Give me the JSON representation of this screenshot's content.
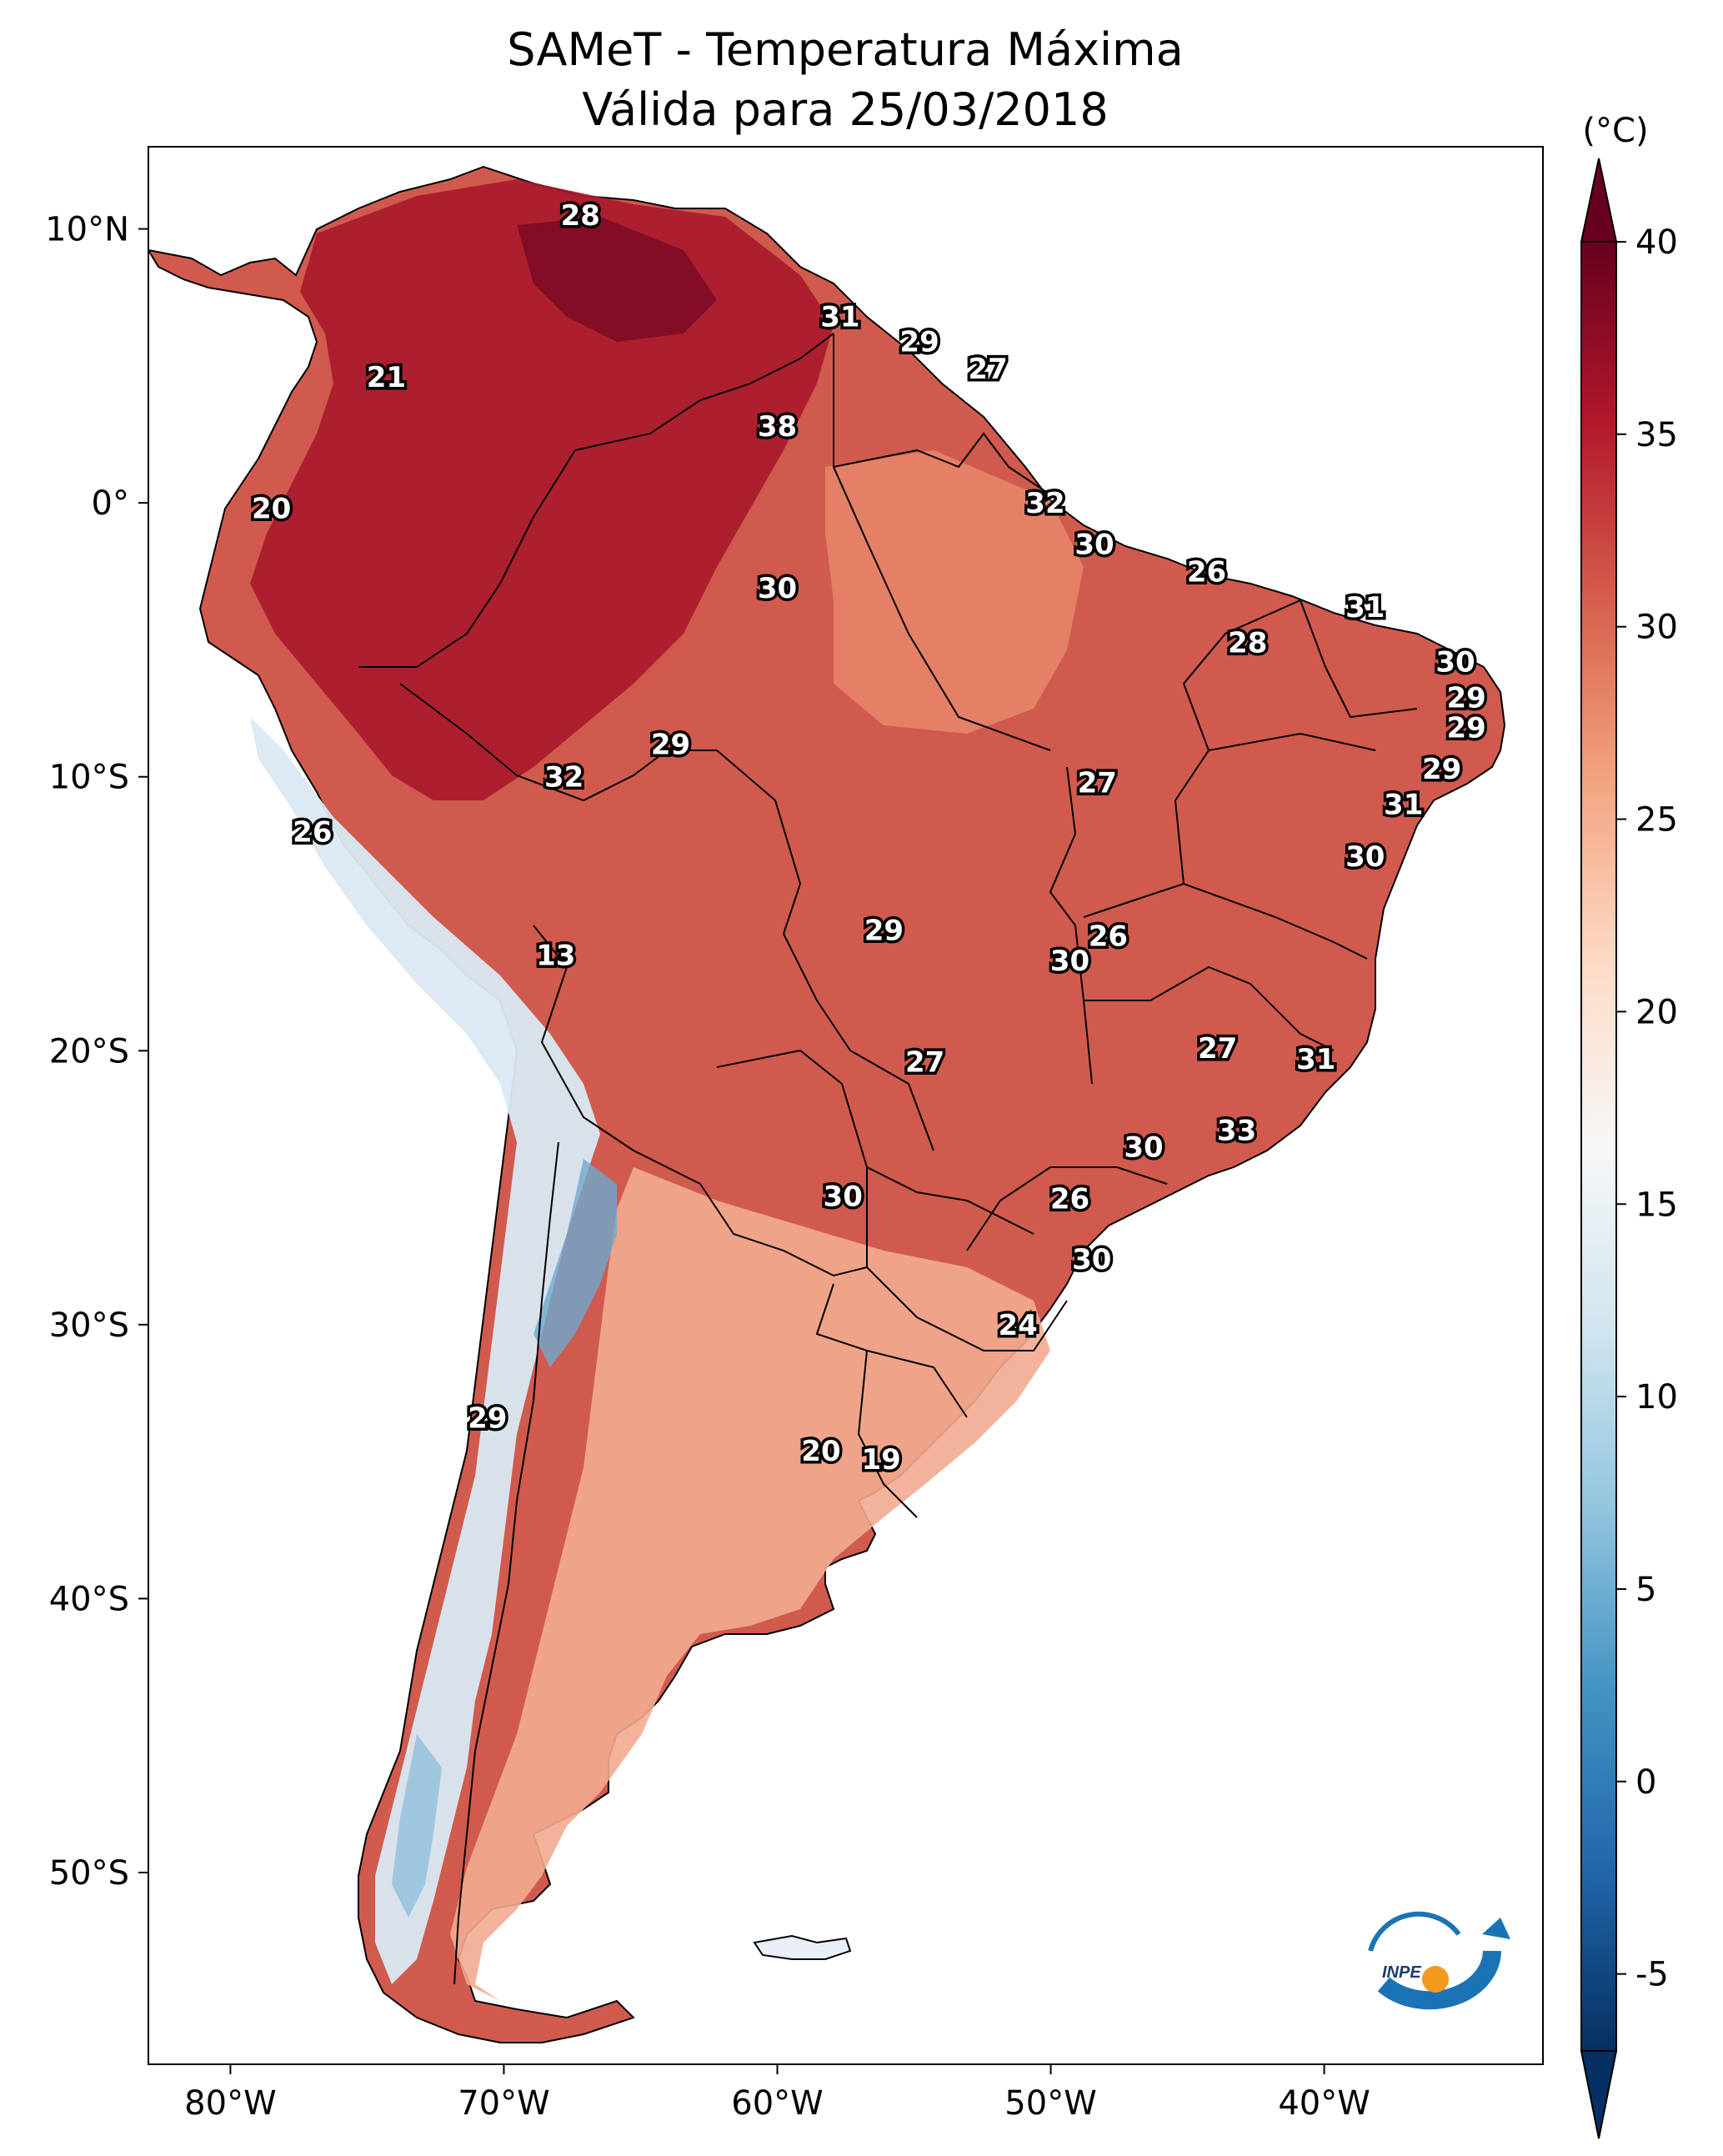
{
  "title": "SAMeT - Temperatura Máxima",
  "subtitle": "Válida para 25/03/2018",
  "colorbar": {
    "unit": "(°C)",
    "ticks": [
      {
        "label": "40",
        "value": 40
      },
      {
        "label": "35",
        "value": 35
      },
      {
        "label": "30",
        "value": 30
      },
      {
        "label": "25",
        "value": 25
      },
      {
        "label": "20",
        "value": 20
      },
      {
        "label": "15",
        "value": 15
      },
      {
        "label": "10",
        "value": 10
      },
      {
        "label": "5",
        "value": 5
      },
      {
        "label": "0",
        "value": 0
      },
      {
        "label": "-5",
        "value": -5
      }
    ],
    "colors": [
      "#67001f",
      "#b2182b",
      "#d6604d",
      "#f4a582",
      "#fddbc7",
      "#f7f7f7",
      "#d1e5f0",
      "#92c5de",
      "#4393c3",
      "#2166ac",
      "#053061"
    ]
  },
  "axes": {
    "lat_ticks": [
      {
        "label": "10°N",
        "value": 10
      },
      {
        "label": "0°",
        "value": 0
      },
      {
        "label": "10°S",
        "value": -10
      },
      {
        "label": "20°S",
        "value": -20
      },
      {
        "label": "30°S",
        "value": -30
      },
      {
        "label": "40°S",
        "value": -40
      },
      {
        "label": "50°S",
        "value": -50
      }
    ],
    "lon_ticks": [
      {
        "label": "80°W",
        "value": -80
      },
      {
        "label": "70°W",
        "value": -70
      },
      {
        "label": "60°W",
        "value": -60
      },
      {
        "label": "50°W",
        "value": -50
      },
      {
        "label": "40°W",
        "value": -40
      }
    ]
  },
  "station_values": [
    {
      "label": "28",
      "lon": -67.2,
      "lat": 10.5
    },
    {
      "label": "31",
      "lon": -57.7,
      "lat": 6.8
    },
    {
      "label": "29",
      "lon": -54.8,
      "lat": 5.9
    },
    {
      "label": "27",
      "lon": -52.3,
      "lat": 4.9
    },
    {
      "label": "21",
      "lon": -74.3,
      "lat": 4.6
    },
    {
      "label": "38",
      "lon": -60.0,
      "lat": 2.8
    },
    {
      "label": "20",
      "lon": -78.5,
      "lat": -0.2
    },
    {
      "label": "32",
      "lon": -50.2,
      "lat": 0.0
    },
    {
      "label": "30",
      "lon": -48.4,
      "lat": -1.5
    },
    {
      "label": "30",
      "lon": -60.0,
      "lat": -3.1
    },
    {
      "label": "26",
      "lon": -44.3,
      "lat": -2.5
    },
    {
      "label": "31",
      "lon": -38.5,
      "lat": -3.8
    },
    {
      "label": "28",
      "lon": -42.8,
      "lat": -5.1
    },
    {
      "label": "30",
      "lon": -35.2,
      "lat": -5.8
    },
    {
      "label": "29",
      "lon": -34.8,
      "lat": -7.1
    },
    {
      "label": "29",
      "lon": -34.8,
      "lat": -8.2
    },
    {
      "label": "29",
      "lon": -35.7,
      "lat": -9.7
    },
    {
      "label": "31",
      "lon": -37.1,
      "lat": -11.0
    },
    {
      "label": "29",
      "lon": -63.9,
      "lat": -8.8
    },
    {
      "label": "32",
      "lon": -67.8,
      "lat": -10.0
    },
    {
      "label": "27",
      "lon": -48.3,
      "lat": -10.2
    },
    {
      "label": "26",
      "lon": -77.0,
      "lat": -12.0
    },
    {
      "label": "30",
      "lon": -38.5,
      "lat": -12.9
    },
    {
      "label": "29",
      "lon": -56.1,
      "lat": -15.6
    },
    {
      "label": "26",
      "lon": -47.9,
      "lat": -15.8
    },
    {
      "label": "30",
      "lon": -49.3,
      "lat": -16.7
    },
    {
      "label": "13",
      "lon": -68.1,
      "lat": -16.5
    },
    {
      "label": "27",
      "lon": -43.9,
      "lat": -19.9
    },
    {
      "label": "31",
      "lon": -40.3,
      "lat": -20.3
    },
    {
      "label": "27",
      "lon": -54.6,
      "lat": -20.4
    },
    {
      "label": "33",
      "lon": -43.2,
      "lat": -22.9
    },
    {
      "label": "30",
      "lon": -46.6,
      "lat": -23.5
    },
    {
      "label": "30",
      "lon": -57.6,
      "lat": -25.3
    },
    {
      "label": "26",
      "lon": -49.3,
      "lat": -25.4
    },
    {
      "label": "30",
      "lon": -48.5,
      "lat": -27.6
    },
    {
      "label": "24",
      "lon": -51.2,
      "lat": -30.0
    },
    {
      "label": "29",
      "lon": -70.6,
      "lat": -33.4
    },
    {
      "label": "20",
      "lon": -58.4,
      "lat": -34.6
    },
    {
      "label": "19",
      "lon": -56.2,
      "lat": -34.9
    }
  ],
  "logo_text": "INPE"
}
